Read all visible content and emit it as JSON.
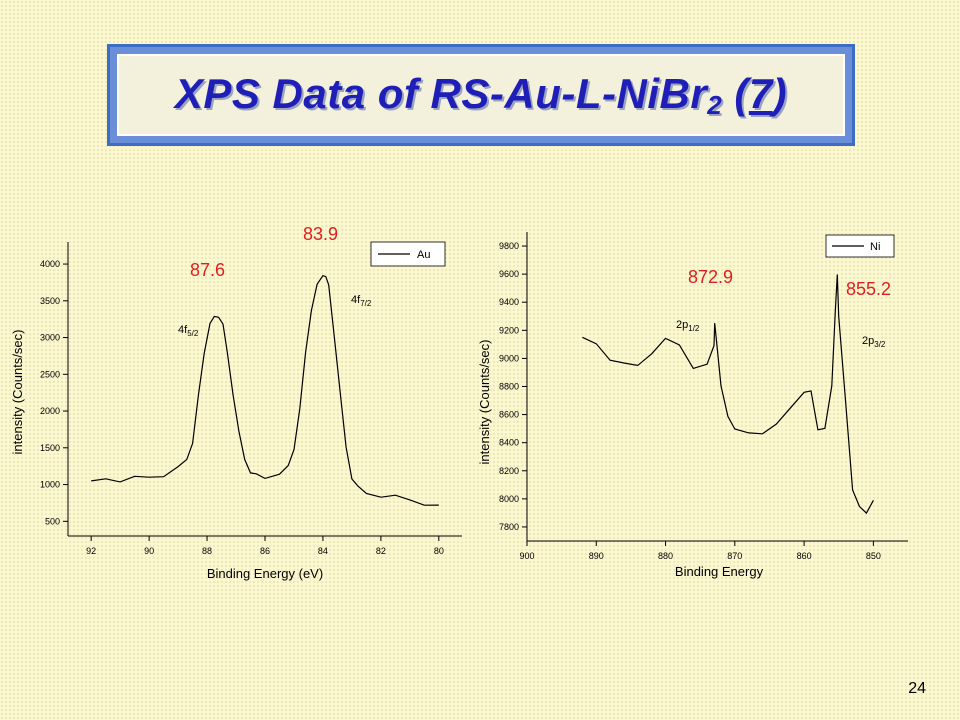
{
  "slide": {
    "title_main": "XPS Data of RS-Au-L-NiBr",
    "title_sub": "2",
    "title_open": " (",
    "title_num": "7",
    "title_close": ")",
    "page_number": "24"
  },
  "chart_data": [
    {
      "type": "line",
      "xlabel": "Binding Energy (eV)",
      "ylabel": "intensity (Counts/sec)",
      "xlim": [
        92.8,
        79.2
      ],
      "ylim": [
        300,
        4300
      ],
      "x_ticks": [
        92,
        90,
        88,
        86,
        84,
        82,
        80
      ],
      "y_ticks": [
        500,
        1000,
        1500,
        2000,
        2500,
        3000,
        3500,
        4000
      ],
      "legend": "Au",
      "legend_position": "top-right",
      "series": [
        {
          "name": "Au",
          "x": [
            92.0,
            91.5,
            91.0,
            90.5,
            90.0,
            89.5,
            89.0,
            88.7,
            88.5,
            88.3,
            88.1,
            87.9,
            87.75,
            87.6,
            87.45,
            87.3,
            87.1,
            86.9,
            86.7,
            86.5,
            86.3,
            86.0,
            85.5,
            85.2,
            85.0,
            84.8,
            84.6,
            84.4,
            84.2,
            84.0,
            83.9,
            83.8,
            83.6,
            83.4,
            83.2,
            83.0,
            82.8,
            82.5,
            82.0,
            81.5,
            81.0,
            80.5,
            80.0
          ],
          "values": [
            1050,
            1070,
            1060,
            1080,
            1100,
            1140,
            1220,
            1350,
            1600,
            2200,
            2800,
            3150,
            3280,
            3300,
            3150,
            2800,
            2250,
            1700,
            1350,
            1200,
            1130,
            1100,
            1100,
            1250,
            1500,
            2000,
            2800,
            3400,
            3700,
            3850,
            3870,
            3700,
            3000,
            2200,
            1500,
            1100,
            950,
            880,
            860,
            830,
            800,
            760,
            720
          ]
        }
      ],
      "annotations": [
        {
          "text": "87.6",
          "x": 87.6,
          "color": "#e02020"
        },
        {
          "text": "83.9",
          "x": 83.9,
          "color": "#e02020"
        },
        {
          "label": "4f",
          "sub": "5/2"
        },
        {
          "label": "4f",
          "sub": "7/2"
        }
      ]
    },
    {
      "type": "line",
      "xlabel": "Binding Energy",
      "ylabel": "intensity (Counts/sec)",
      "xlim": [
        900,
        845
      ],
      "ylim": [
        7700,
        9900
      ],
      "x_ticks": [
        900,
        890,
        880,
        870,
        860,
        850
      ],
      "y_ticks": [
        7800,
        8000,
        8200,
        8400,
        8600,
        8800,
        9000,
        9200,
        9400,
        9600,
        9800
      ],
      "legend": "Ni",
      "legend_position": "top-right",
      "series": [
        {
          "name": "Ni",
          "x": [
            892,
            890,
            888,
            886,
            884,
            882,
            880,
            878,
            876,
            874,
            873,
            872.9,
            872,
            871,
            870,
            868,
            866,
            864,
            862,
            860,
            859,
            858,
            857,
            856,
            855.5,
            855.2,
            855,
            854,
            853,
            852,
            851,
            850
          ],
          "values": [
            9150,
            9100,
            9000,
            8950,
            8950,
            9050,
            9130,
            9100,
            8950,
            8950,
            9100,
            9230,
            8800,
            8600,
            8480,
            8470,
            8480,
            8520,
            8650,
            8780,
            8760,
            8500,
            8480,
            8800,
            9350,
            9580,
            9300,
            8700,
            8050,
            7950,
            7920,
            7990
          ]
        }
      ],
      "annotations": [
        {
          "text": "872.9",
          "x": 872.9,
          "color": "#e02020"
        },
        {
          "text": "855.2",
          "x": 855.2,
          "color": "#e02020"
        },
        {
          "label": "2p",
          "sub": "1/2"
        },
        {
          "label": "2p",
          "sub": "3/2"
        }
      ]
    }
  ]
}
